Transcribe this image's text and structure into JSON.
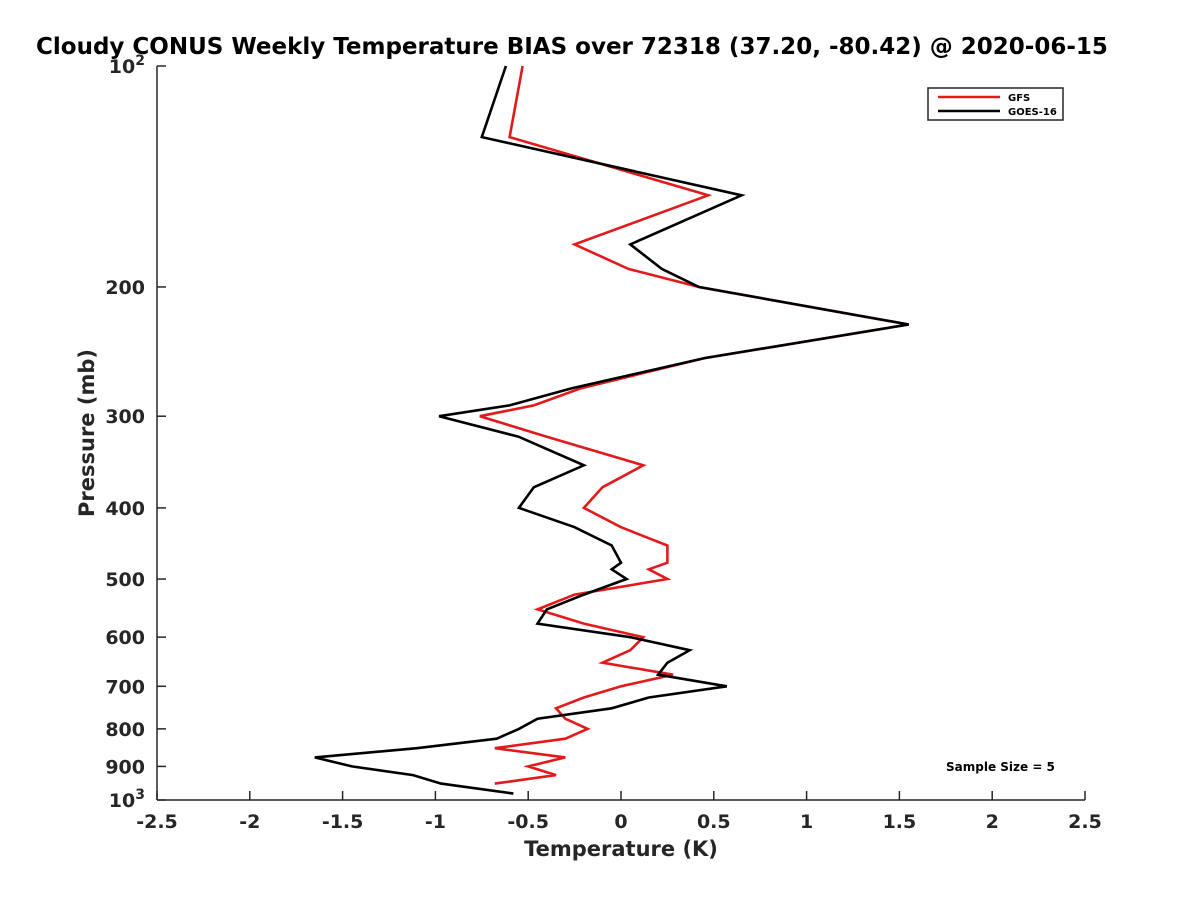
{
  "chart_data": {
    "type": "line",
    "title": "Cloudy CONUS Weekly Temperature BIAS over 72318 (37.20, -80.42) @ 2020-06-15",
    "xlabel": "Temperature (K)",
    "ylabel": "Pressure (mb)",
    "xlim": [
      -2.5,
      2.5
    ],
    "ylim": [
      100,
      1000
    ],
    "yscale": "log",
    "y_reversed": true,
    "grid": false,
    "legend_position": "top-right",
    "x_ticks": [
      "-2.5",
      "-2",
      "-1.5",
      "-1",
      "-0.5",
      "0",
      "0.5",
      "1",
      "1.5",
      "2",
      "2.5"
    ],
    "x_tick_values": [
      -2.5,
      -2,
      -1.5,
      -1,
      -0.5,
      0,
      0.5,
      1,
      1.5,
      2,
      2.5
    ],
    "y_ticks": [
      {
        "value": 100,
        "base": "10",
        "exp": "2"
      },
      {
        "value": 200,
        "label": "200"
      },
      {
        "value": 300,
        "label": "300"
      },
      {
        "value": 400,
        "label": "400"
      },
      {
        "value": 500,
        "label": "500"
      },
      {
        "value": 600,
        "label": "600"
      },
      {
        "value": 700,
        "label": "700"
      },
      {
        "value": 800,
        "label": "800"
      },
      {
        "value": 900,
        "label": "900"
      },
      {
        "value": 1000,
        "base": "10",
        "exp": "3"
      }
    ],
    "annotation": "Sample Size = 5",
    "series": [
      {
        "name": "GFS",
        "color": "#e31a1c",
        "points": [
          [
            -0.53,
            100
          ],
          [
            -0.6,
            125
          ],
          [
            0.47,
            150
          ],
          [
            -0.25,
            175
          ],
          [
            0.04,
            189
          ],
          [
            0.42,
            200
          ],
          [
            1.55,
            225
          ],
          [
            0.45,
            250
          ],
          [
            -0.22,
            275
          ],
          [
            -0.47,
            290
          ],
          [
            -0.76,
            300
          ],
          [
            -0.4,
            320
          ],
          [
            0.12,
            350
          ],
          [
            -0.1,
            375
          ],
          [
            -0.2,
            400
          ],
          [
            0.0,
            425
          ],
          [
            0.25,
            450
          ],
          [
            0.25,
            475
          ],
          [
            0.15,
            485
          ],
          [
            0.25,
            500
          ],
          [
            -0.25,
            525
          ],
          [
            -0.45,
            550
          ],
          [
            -0.2,
            575
          ],
          [
            0.12,
            600
          ],
          [
            0.05,
            625
          ],
          [
            -0.1,
            650
          ],
          [
            0.28,
            675
          ],
          [
            0.0,
            700
          ],
          [
            -0.2,
            725
          ],
          [
            -0.35,
            750
          ],
          [
            -0.3,
            775
          ],
          [
            -0.18,
            800
          ],
          [
            -0.3,
            825
          ],
          [
            -0.68,
            850
          ],
          [
            -0.3,
            875
          ],
          [
            -0.5,
            900
          ],
          [
            -0.35,
            925
          ],
          [
            -0.68,
            950
          ]
        ]
      },
      {
        "name": "GOES-16",
        "color": "#000000",
        "points": [
          [
            -0.62,
            100
          ],
          [
            -0.75,
            125
          ],
          [
            0.65,
            150
          ],
          [
            0.05,
            175
          ],
          [
            0.22,
            189
          ],
          [
            0.42,
            200
          ],
          [
            1.55,
            225
          ],
          [
            0.45,
            250
          ],
          [
            -0.27,
            275
          ],
          [
            -0.6,
            290
          ],
          [
            -0.98,
            300
          ],
          [
            -0.55,
            320
          ],
          [
            -0.2,
            350
          ],
          [
            -0.47,
            375
          ],
          [
            -0.55,
            400
          ],
          [
            -0.25,
            425
          ],
          [
            -0.05,
            450
          ],
          [
            0.0,
            475
          ],
          [
            -0.05,
            485
          ],
          [
            0.03,
            500
          ],
          [
            -0.2,
            525
          ],
          [
            -0.4,
            550
          ],
          [
            -0.45,
            575
          ],
          [
            0.05,
            600
          ],
          [
            0.37,
            625
          ],
          [
            0.25,
            650
          ],
          [
            0.2,
            675
          ],
          [
            0.57,
            700
          ],
          [
            0.15,
            725
          ],
          [
            -0.05,
            750
          ],
          [
            -0.45,
            775
          ],
          [
            -0.55,
            800
          ],
          [
            -0.67,
            825
          ],
          [
            -1.1,
            850
          ],
          [
            -1.65,
            875
          ],
          [
            -1.45,
            900
          ],
          [
            -1.12,
            925
          ],
          [
            -0.97,
            950
          ],
          [
            -0.58,
            980
          ]
        ]
      }
    ]
  }
}
